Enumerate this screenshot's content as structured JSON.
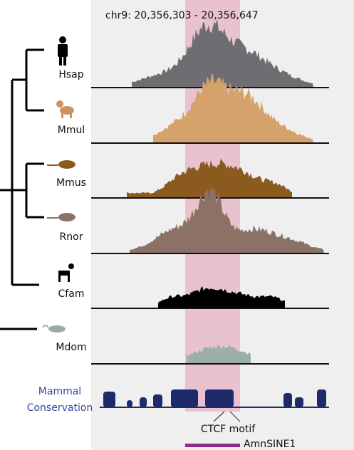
{
  "header": {
    "title": "chr9: 20,356,303 - 20,356,647"
  },
  "species": [
    {
      "label": "Hsap"
    },
    {
      "label": "Mmul"
    },
    {
      "label": "Mmus"
    },
    {
      "label": "Rnor"
    },
    {
      "label": "Cfam"
    },
    {
      "label": "Mdom"
    }
  ],
  "conservation": {
    "label_lines": [
      "Mammal",
      "Conservation"
    ]
  },
  "annotations": {
    "motif": "CTCF motif",
    "element": "AmnSINE1"
  }
}
